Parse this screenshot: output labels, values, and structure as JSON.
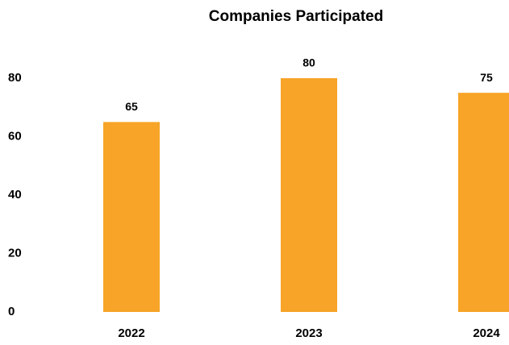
{
  "chart_data": {
    "type": "bar",
    "title": "Companies Participated",
    "categories": [
      "2022",
      "2023",
      "2024"
    ],
    "values": [
      65,
      80,
      75
    ],
    "color": "#f7a428",
    "ylim": [
      0,
      80
    ],
    "yticks": [
      0,
      20,
      40,
      60,
      80
    ],
    "grid": false
  }
}
